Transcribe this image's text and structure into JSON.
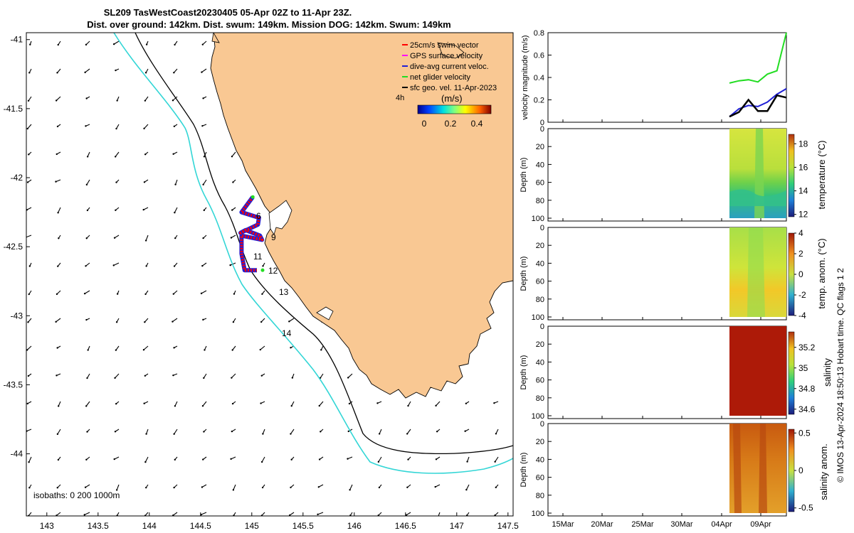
{
  "title": {
    "line1": "SL209 TasWestCoast20230405 05-Apr 02Z to 11-Apr 23Z.",
    "line2": "Dist. over ground: 142km. Dist. swum: 149km. Mission DOG: 142km. Swum: 149km"
  },
  "colors": {
    "land": "#f9c893",
    "isobath_200": "#000000",
    "isobath_1000": "#33d6d6",
    "swim_vector": "#ff0000",
    "gps_velocity": "#ff00ff",
    "depth_avg_velocity": "#1f1fd6",
    "net_glider_velocity": "#22dd22",
    "sfc_geo_velocity": "#000000"
  },
  "map": {
    "legend": [
      {
        "key": "swim",
        "label": "25cm/s swim vector"
      },
      {
        "key": "gps",
        "label": "GPS surface velocity"
      },
      {
        "key": "dav",
        "label": "dive-avg current veloc."
      },
      {
        "key": "net",
        "label": "net glider velocity"
      },
      {
        "key": "geo",
        "label": "sfc geo. vel. 11-Apr-2023"
      }
    ],
    "scale_label": "4h",
    "colorbar_title": "(m/s)",
    "colorbar_ticks": [
      "0",
      "0.2",
      "0.4"
    ],
    "isobaths_label": "isobaths: 0   200  1000m",
    "xticks": [
      "143",
      "143.5",
      "144",
      "144.5",
      "145",
      "145.5",
      "146",
      "146.5",
      "147",
      "147.5"
    ],
    "yticks": [
      "-41",
      "-41.5",
      "-42",
      "-42.5",
      "-43",
      "-43.5",
      "-44"
    ],
    "track_day_labels": [
      "6",
      "9",
      "11",
      "12",
      "13",
      "14"
    ]
  },
  "panels": {
    "date_ticks": [
      "15Mar",
      "20Mar",
      "25Mar",
      "30Mar",
      "04Apr",
      "09Apr"
    ],
    "velocity": {
      "ylabel": "velocity magnitude (m/s)",
      "yticks": [
        "0",
        "0.2",
        "0.4",
        "0.6",
        "0.8"
      ]
    },
    "depth_label": "Depth (m)",
    "depth_ticks": [
      "0",
      "20",
      "40",
      "60",
      "80",
      "100"
    ],
    "temperature": {
      "cbar_label": "temperature (°C)",
      "cbar_ticks": [
        "18",
        "16",
        "14",
        "12"
      ]
    },
    "temp_anom": {
      "cbar_label": "temp. anom. (°C)",
      "cbar_ticks": [
        "4",
        "2",
        "0",
        "-2",
        "-4"
      ]
    },
    "salinity": {
      "cbar_label": "salinity",
      "cbar_ticks": [
        "35.2",
        "35",
        "34.8",
        "34.6"
      ]
    },
    "sal_anom": {
      "cbar_label": "salinity anom.",
      "cbar_ticks": [
        "0.5",
        "0",
        "-0.5"
      ]
    }
  },
  "footer": {
    "credit": "© IMOS 13-Apr-2024 18:50:13 Hobart time. QC flags 1  2"
  },
  "chart_data": [
    {
      "type": "scatter",
      "title": "SL209 TasWestCoast20230405 05-Apr 02Z to 11-Apr 23Z.",
      "xlabel": "",
      "ylabel": "",
      "xlim": [
        142.8,
        147.55
      ],
      "ylim": [
        -44.45,
        -40.95
      ],
      "glider_track": {
        "lon": [
          145.01,
          144.9,
          145.07,
          145.06,
          144.89,
          144.94,
          145.08,
          145.1,
          144.9,
          144.9,
          144.93,
          145.05
        ],
        "lat": [
          -42.14,
          -42.25,
          -42.29,
          -42.34,
          -42.4,
          -42.38,
          -42.42,
          -42.45,
          -42.42,
          -42.55,
          -42.67,
          -42.67
        ],
        "labels": [
          "6",
          "9",
          "11",
          "12"
        ]
      }
    },
    {
      "type": "line",
      "xlabel": "",
      "ylabel": "velocity magnitude (m/s)",
      "ylim": [
        0,
        0.8
      ],
      "x": [
        "05-Apr",
        "06-Apr",
        "07-Apr",
        "08-Apr",
        "09-Apr",
        "10-Apr",
        "11-Apr"
      ],
      "series": [
        {
          "values": [
            0.35,
            0.37,
            0.38,
            0.36,
            0.43,
            0.46,
            0.8
          ]
        },
        {
          "values": [
            0.05,
            0.12,
            0.15,
            0.14,
            0.18,
            0.25,
            0.3
          ]
        },
        {
          "values": [
            0.05,
            0.09,
            0.2,
            0.1,
            0.1,
            0.24,
            0.22
          ]
        }
      ]
    },
    {
      "type": "heatmap",
      "ylabel": "Depth (m)",
      "ylim": [
        100,
        0
      ],
      "colorbar_label": "temperature (°C)",
      "clim": [
        11.8,
        18.8
      ]
    },
    {
      "type": "heatmap",
      "ylabel": "Depth (m)",
      "ylim": [
        100,
        0
      ],
      "colorbar_label": "temp. anom. (°C)",
      "clim": [
        -4,
        4
      ]
    },
    {
      "type": "heatmap",
      "ylabel": "Depth (m)",
      "ylim": [
        100,
        0
      ],
      "colorbar_label": "salinity",
      "clim": [
        34.55,
        35.35
      ]
    },
    {
      "type": "heatmap",
      "ylabel": "Depth (m)",
      "ylim": [
        100,
        0
      ],
      "colorbar_label": "salinity anom.",
      "clim": [
        -0.55,
        0.55
      ]
    }
  ]
}
